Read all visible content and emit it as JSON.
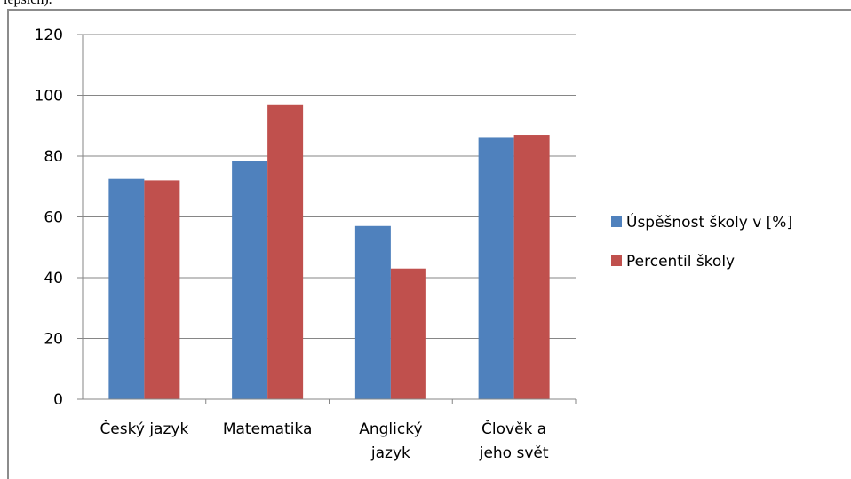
{
  "page": {
    "top_text": "lepsich)."
  },
  "chart_data": {
    "type": "bar",
    "categories": [
      [
        "Český jazyk"
      ],
      [
        "Matematika"
      ],
      [
        "Anglický",
        "jazyk"
      ],
      [
        "Člověk a",
        "jeho svět"
      ]
    ],
    "series": [
      {
        "name": "Úspěšnost školy v [%]",
        "color": "#4f81bd",
        "values": [
          72.5,
          78.5,
          57,
          86
        ]
      },
      {
        "name": "Percentil školy",
        "color": "#c0504d",
        "values": [
          72,
          97,
          43,
          87
        ]
      }
    ],
    "yticks": [
      "0",
      "20",
      "40",
      "60",
      "80",
      "100",
      "120"
    ],
    "ylim": [
      0,
      120
    ],
    "grid": true,
    "legend_position": "right"
  }
}
